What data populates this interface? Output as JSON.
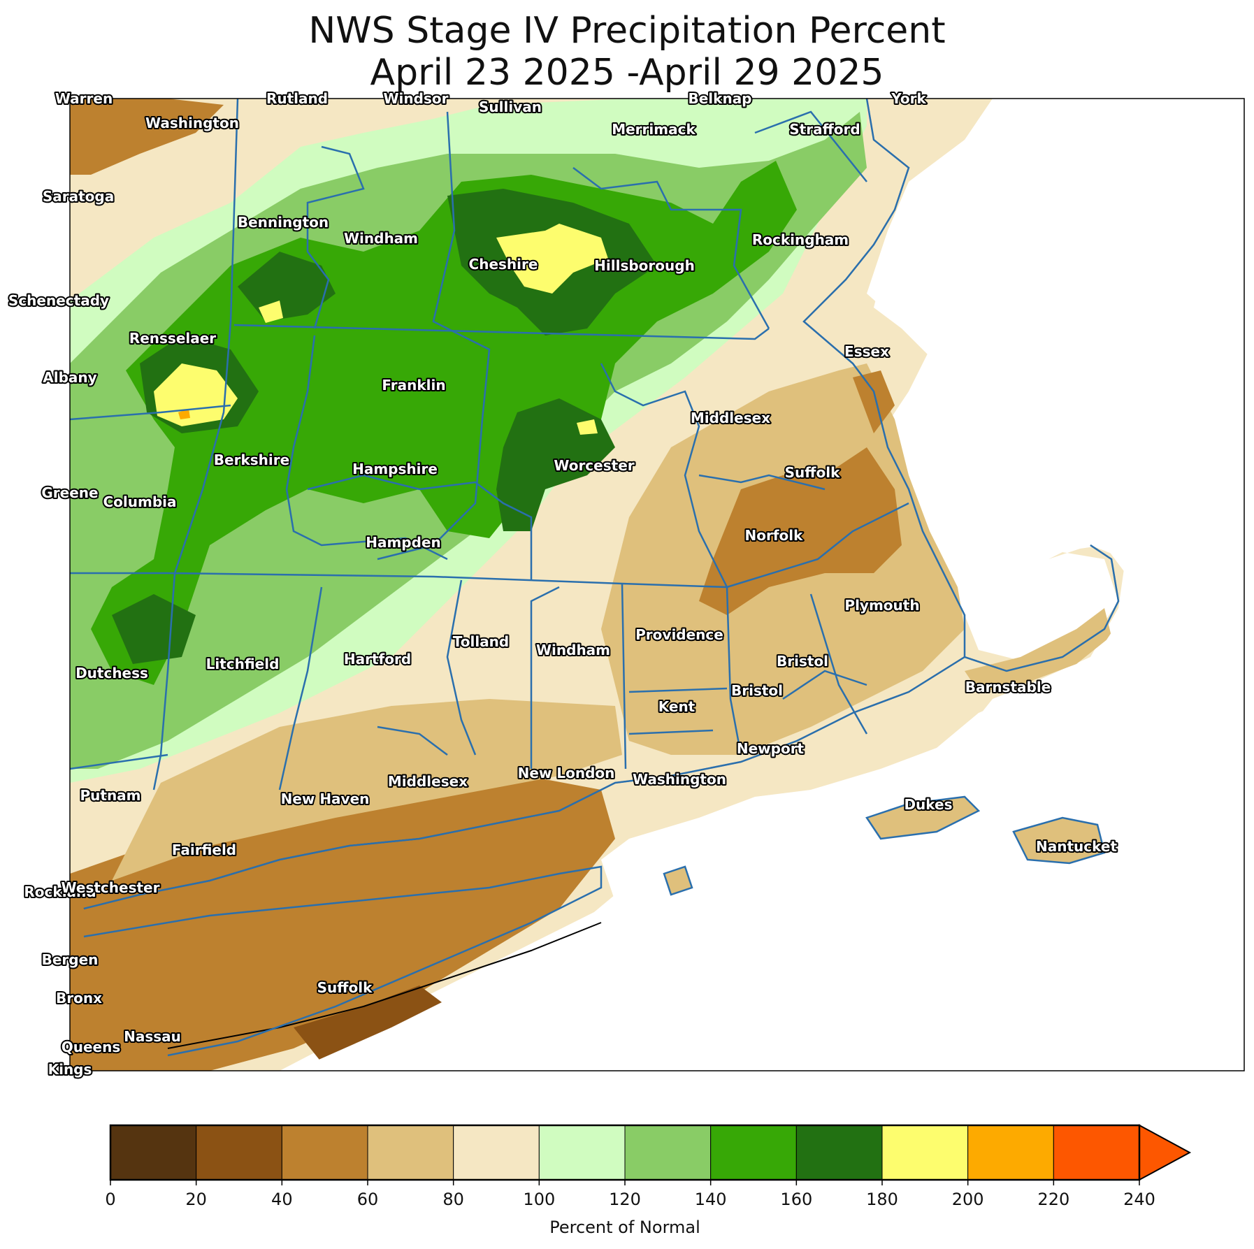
{
  "title": {
    "line1": "NWS Stage IV Precipitation Percent",
    "line2": "April 23 2025 -April 29 2025"
  },
  "colorbar": {
    "label": "Percent of Normal",
    "ticks": [
      "0",
      "20",
      "40",
      "60",
      "80",
      "100",
      "120",
      "140",
      "160",
      "180",
      "200",
      "220",
      "240"
    ],
    "colors": [
      "#553410",
      "#8b5214",
      "#bd812f",
      "#dfc07c",
      "#f5e7c3",
      "#d0fcc0",
      "#89cc66",
      "#37a806",
      "#227112",
      "#fdfd6e",
      "#fdaa00",
      "#fd5700"
    ],
    "extend_color": "#fd5700"
  },
  "colors": {
    "border": "#2a6fad",
    "coast": "#000000",
    "water": "#ffffff"
  },
  "counties": [
    {
      "name": "Warren"
    },
    {
      "name": "Rutland"
    },
    {
      "name": "Windsor"
    },
    {
      "name": "Sullivan"
    },
    {
      "name": "Belknap"
    },
    {
      "name": "York"
    },
    {
      "name": "Washington"
    },
    {
      "name": "Merrimack"
    },
    {
      "name": "Strafford"
    },
    {
      "name": "Saratoga"
    },
    {
      "name": "Bennington"
    },
    {
      "name": "Windham"
    },
    {
      "name": "Rockingham"
    },
    {
      "name": "Cheshire"
    },
    {
      "name": "Hillsborough"
    },
    {
      "name": "Schenectady"
    },
    {
      "name": "Rensselaer"
    },
    {
      "name": "Essex"
    },
    {
      "name": "Albany"
    },
    {
      "name": "Franklin"
    },
    {
      "name": "Middlesex"
    },
    {
      "name": "Berkshire"
    },
    {
      "name": "Hampshire"
    },
    {
      "name": "Worcester"
    },
    {
      "name": "Suffolk"
    },
    {
      "name": "Greene"
    },
    {
      "name": "Columbia"
    },
    {
      "name": "Norfolk"
    },
    {
      "name": "Hampden"
    },
    {
      "name": "Plymouth"
    },
    {
      "name": "Providence"
    },
    {
      "name": "Tolland"
    },
    {
      "name": "Windham"
    },
    {
      "name": "Dutchess"
    },
    {
      "name": "Litchfield"
    },
    {
      "name": "Hartford"
    },
    {
      "name": "Bristol"
    },
    {
      "name": "Bristol"
    },
    {
      "name": "Barnstable"
    },
    {
      "name": "Kent"
    },
    {
      "name": "Newport"
    },
    {
      "name": "New London"
    },
    {
      "name": "Washington"
    },
    {
      "name": "Middlesex"
    },
    {
      "name": "Putnam"
    },
    {
      "name": "New Haven"
    },
    {
      "name": "Dukes"
    },
    {
      "name": "Fairfield"
    },
    {
      "name": "Nantucket"
    },
    {
      "name": "Rockland"
    },
    {
      "name": "Westchester"
    },
    {
      "name": "Bergen"
    },
    {
      "name": "Suffolk"
    },
    {
      "name": "Bronx"
    },
    {
      "name": "Nassau"
    },
    {
      "name": "Queens"
    },
    {
      "name": "Kings"
    }
  ]
}
